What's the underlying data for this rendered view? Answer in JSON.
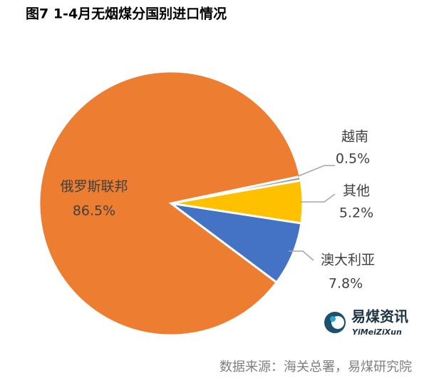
{
  "chart_data": {
    "type": "pie",
    "title": "图7 1-4月无烟煤分国别进口情况",
    "categories": [
      "越南",
      "其他",
      "澳大利亚",
      "俄罗斯联邦"
    ],
    "values": [
      0.5,
      5.2,
      7.8,
      86.5
    ],
    "value_labels": [
      "0.5%",
      "5.2%",
      "7.8%",
      "86.5%"
    ],
    "colors": [
      "#a5a5a5",
      "#ffc000",
      "#4472c4",
      "#ed7d31"
    ],
    "source": "数据来源：海关总署，易煤研究院",
    "logo": {
      "title": "易煤资讯",
      "subtitle": "YiMeiZiXun"
    }
  }
}
